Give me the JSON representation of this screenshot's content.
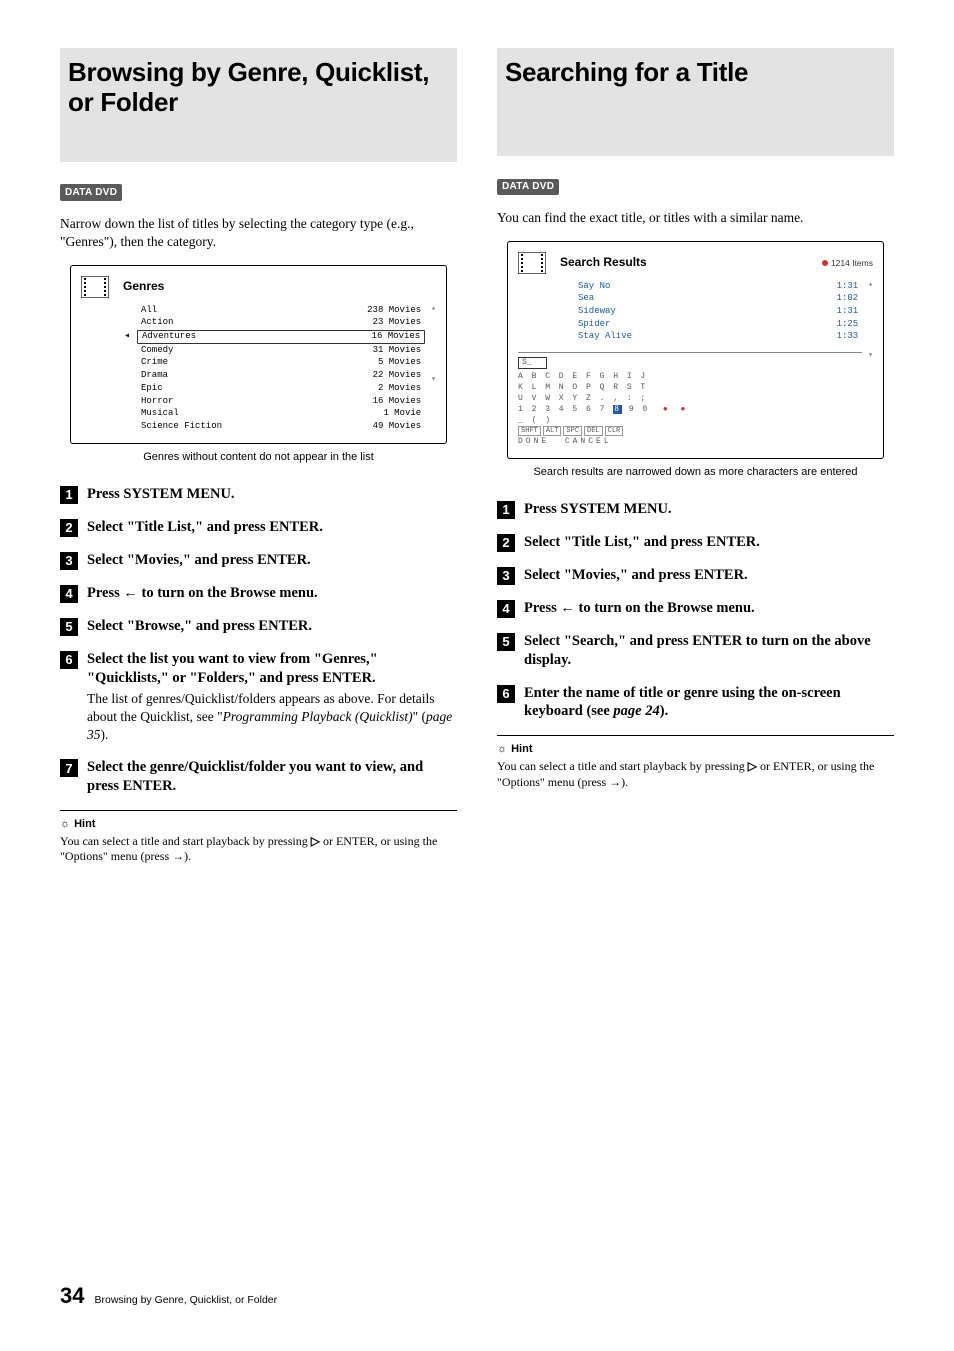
{
  "left": {
    "heading": "Browsing by Genre, Quicklist, or Folder",
    "badge": "DATA DVD",
    "intro": "Narrow down the list of titles by selecting the category type (e.g., \"Genres\"), then the category.",
    "screenshot": {
      "title": "Genres",
      "rows": [
        {
          "name": "All",
          "count": "238 Movies",
          "selected": false
        },
        {
          "name": "Action",
          "count": "23 Movies",
          "selected": false
        },
        {
          "name": "Adventures",
          "count": "16 Movies",
          "selected": true
        },
        {
          "name": "Comedy",
          "count": "31 Movies",
          "selected": false
        },
        {
          "name": "Crime",
          "count": "5 Movies",
          "selected": false
        },
        {
          "name": "Drama",
          "count": "22 Movies",
          "selected": false
        },
        {
          "name": "Epic",
          "count": "2 Movies",
          "selected": false
        },
        {
          "name": "Horror",
          "count": "16 Movies",
          "selected": false
        },
        {
          "name": "Musical",
          "count": "1 Movie",
          "selected": false
        },
        {
          "name": "Science Fiction",
          "count": "49 Movies",
          "selected": false
        }
      ]
    },
    "caption": "Genres without content do not appear in the list",
    "steps": [
      {
        "n": "1",
        "title": "Press SYSTEM MENU."
      },
      {
        "n": "2",
        "title": "Select \"Title List,\" and press ENTER."
      },
      {
        "n": "3",
        "title": "Select \"Movies,\" and press ENTER."
      },
      {
        "n": "4",
        "title_pre": "Press ",
        "arrow": "←",
        "title_post": " to turn on the Browse menu."
      },
      {
        "n": "5",
        "title": "Select \"Browse,\" and press ENTER."
      },
      {
        "n": "6",
        "title": "Select the list you want to view from \"Genres,\" \"Quicklists,\" or \"Folders,\" and press ENTER.",
        "body_pre": "The list of genres/Quicklist/folders appears as above. For details about the Quicklist, see \"",
        "body_it1": "Programming Playback (Quicklist)",
        "body_mid": "\" (",
        "body_it2": "page 35",
        "body_post": ")."
      },
      {
        "n": "7",
        "title": "Select the genre/Quicklist/folder you want to view, and press ENTER."
      }
    ],
    "hint_label": "Hint",
    "hint_pre": "You can select a title and start playback by pressing ",
    "hint_play": "▷",
    "hint_mid": " or ENTER, or using the \"Options\" menu (press ",
    "hint_arrow": "→",
    "hint_post": ")."
  },
  "right": {
    "heading": "Searching for a Title",
    "badge": "DATA DVD",
    "intro": "You can find the exact title, or titles with a similar name.",
    "screenshot": {
      "title": "Search Results",
      "count": "1214 Items",
      "rows": [
        {
          "name": "Say No",
          "time": "1:31"
        },
        {
          "name": "Sea",
          "time": "1:02"
        },
        {
          "name": "Sideway",
          "time": "1:31"
        },
        {
          "name": "Spider",
          "time": "1:25"
        },
        {
          "name": "Stay Alive",
          "time": "1:33"
        }
      ],
      "keyboard": {
        "input": "S_",
        "line1": "A B C D E F G H I J",
        "line2": "K L M N O P Q R S T",
        "line3": "U V W X Y Z . , : ;",
        "line4_pre": "1 2 3 4 5 6 7 ",
        "line4_sel": "8",
        "line4_post": " 9 0",
        "line5": "_ ( )",
        "btns": [
          "SHFT",
          "ALT",
          "SPC",
          "DEL",
          "CLR"
        ],
        "done": "DONE",
        "cancel": "CANCEL"
      }
    },
    "caption": "Search results are narrowed down as more characters are entered",
    "steps": [
      {
        "n": "1",
        "title": "Press SYSTEM MENU."
      },
      {
        "n": "2",
        "title": "Select \"Title List,\" and press ENTER."
      },
      {
        "n": "3",
        "title": "Select \"Movies,\" and press ENTER."
      },
      {
        "n": "4",
        "title_pre": "Press ",
        "arrow": "←",
        "title_post": " to turn on the Browse menu."
      },
      {
        "n": "5",
        "title": "Select \"Search,\" and press ENTER to turn on the above display."
      },
      {
        "n": "6",
        "title_pre2": "Enter the name of title or genre using the on-screen keyboard (see ",
        "title_it": "page 24",
        "title_post2": ")."
      }
    ],
    "hint_label": "Hint",
    "hint_pre": "You can select a title and start playback by pressing ",
    "hint_play": "▷",
    "hint_mid": " or ENTER, or using the \"Options\" menu (press ",
    "hint_arrow": "→",
    "hint_post": ")."
  },
  "footer": {
    "page": "34",
    "text": "Browsing by Genre, Quicklist, or Folder"
  }
}
